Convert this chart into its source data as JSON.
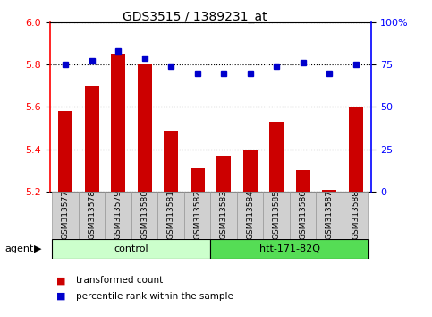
{
  "title": "GDS3515 / 1389231_at",
  "samples": [
    "GSM313577",
    "GSM313578",
    "GSM313579",
    "GSM313580",
    "GSM313581",
    "GSM313582",
    "GSM313583",
    "GSM313584",
    "GSM313585",
    "GSM313586",
    "GSM313587",
    "GSM313588"
  ],
  "transformed_count": [
    5.58,
    5.7,
    5.85,
    5.8,
    5.49,
    5.31,
    5.37,
    5.4,
    5.53,
    5.3,
    5.21,
    5.6
  ],
  "percentile_rank": [
    75,
    77,
    83,
    79,
    74,
    70,
    70,
    70,
    74,
    76,
    70,
    75
  ],
  "ylim_left": [
    5.2,
    6.0
  ],
  "ylim_right": [
    0,
    100
  ],
  "yticks_left": [
    5.2,
    5.4,
    5.6,
    5.8,
    6.0
  ],
  "yticks_right": [
    0,
    25,
    50,
    75,
    100
  ],
  "ytick_labels_right": [
    "0",
    "25",
    "50",
    "75",
    "100%"
  ],
  "bar_color": "#cc0000",
  "dot_color": "#0000cc",
  "group_labels": [
    "control",
    "htt-171-82Q"
  ],
  "group_colors_light": "#ccffcc",
  "group_colors_dark": "#55dd55",
  "agent_label": "agent",
  "legend_bar_label": "transformed count",
  "legend_dot_label": "percentile rank within the sample",
  "plot_bg": "#ffffff",
  "bar_base": 5.2,
  "n_control": 6,
  "n_total": 12
}
